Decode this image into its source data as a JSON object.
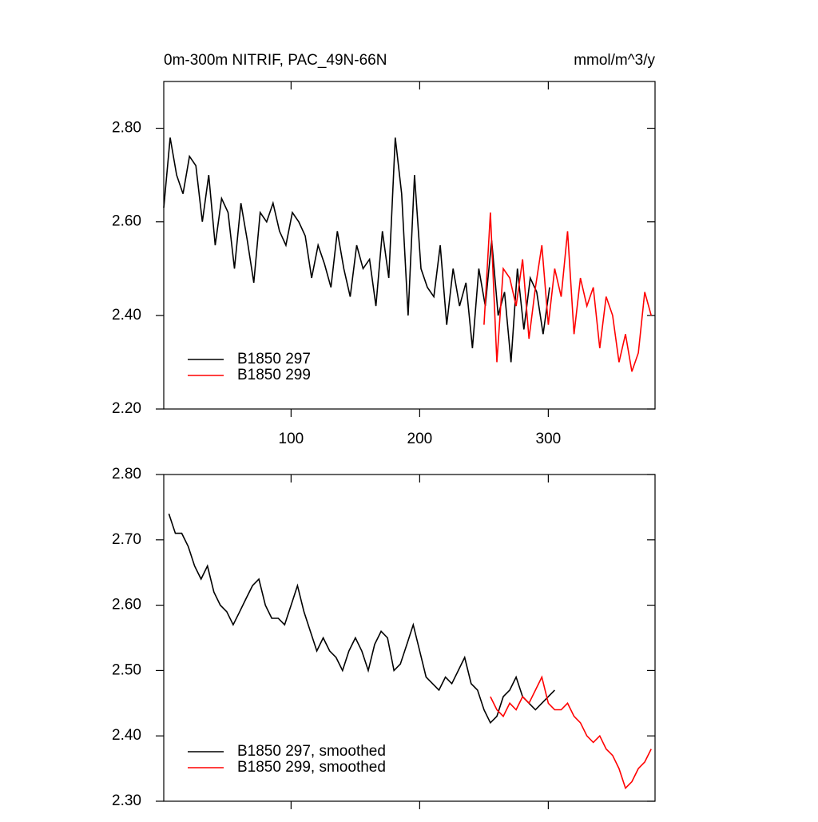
{
  "chart_data": [
    {
      "type": "line",
      "title": "0m-300m NITRIF, PAC_49N-66N",
      "units": "mmol/m^3/y",
      "xlim": [
        1,
        383
      ],
      "xticks": [
        100,
        200,
        300
      ],
      "xtick_labels": true,
      "ylim": [
        2.2,
        2.9
      ],
      "yticks": [
        {
          "value": 2.2,
          "label": "2.20"
        },
        {
          "value": 2.4,
          "label": "2.40"
        },
        {
          "value": 2.6,
          "label": "2.60"
        },
        {
          "value": 2.8,
          "label": "2.80"
        }
      ],
      "legend": "lower left",
      "series": [
        {
          "name": "B1850 297",
          "color": "#000000",
          "x": [
            1,
            6,
            11,
            16,
            21,
            26,
            31,
            36,
            41,
            46,
            51,
            56,
            61,
            66,
            71,
            76,
            81,
            86,
            91,
            96,
            101,
            106,
            111,
            116,
            121,
            126,
            131,
            136,
            141,
            146,
            151,
            156,
            161,
            166,
            171,
            176,
            181,
            186,
            191,
            196,
            201,
            206,
            211,
            216,
            221,
            226,
            231,
            236,
            241,
            246,
            251,
            256,
            261,
            266,
            271,
            276,
            281,
            286,
            291,
            296,
            301
          ],
          "values": [
            2.63,
            2.78,
            2.7,
            2.66,
            2.74,
            2.72,
            2.6,
            2.7,
            2.55,
            2.65,
            2.62,
            2.5,
            2.64,
            2.56,
            2.47,
            2.62,
            2.6,
            2.64,
            2.58,
            2.55,
            2.62,
            2.6,
            2.57,
            2.48,
            2.55,
            2.51,
            2.46,
            2.58,
            2.5,
            2.44,
            2.55,
            2.5,
            2.52,
            2.42,
            2.58,
            2.48,
            2.78,
            2.66,
            2.4,
            2.7,
            2.5,
            2.46,
            2.44,
            2.55,
            2.38,
            2.5,
            2.42,
            2.47,
            2.33,
            2.5,
            2.42,
            2.56,
            2.4,
            2.45,
            2.3,
            2.5,
            2.37,
            2.48,
            2.45,
            2.36,
            2.46
          ]
        },
        {
          "name": "B1850 299",
          "color": "#ff0000",
          "x": [
            250,
            255,
            260,
            265,
            270,
            275,
            280,
            285,
            290,
            295,
            300,
            305,
            310,
            315,
            320,
            325,
            330,
            335,
            340,
            345,
            350,
            355,
            360,
            365,
            370,
            375,
            380
          ],
          "values": [
            2.38,
            2.62,
            2.3,
            2.5,
            2.48,
            2.42,
            2.52,
            2.35,
            2.46,
            2.55,
            2.38,
            2.5,
            2.44,
            2.58,
            2.36,
            2.48,
            2.42,
            2.46,
            2.33,
            2.44,
            2.4,
            2.3,
            2.36,
            2.28,
            2.32,
            2.45,
            2.4
          ]
        }
      ]
    },
    {
      "type": "line",
      "xlim": [
        1,
        383
      ],
      "xticks": [
        100,
        200,
        300
      ],
      "xtick_labels": false,
      "ylim": [
        2.3,
        2.8
      ],
      "yticks": [
        {
          "value": 2.3,
          "label": "2.30"
        },
        {
          "value": 2.4,
          "label": "2.40"
        },
        {
          "value": 2.5,
          "label": "2.50"
        },
        {
          "value": 2.6,
          "label": "2.60"
        },
        {
          "value": 2.7,
          "label": "2.70"
        },
        {
          "value": 2.8,
          "label": "2.80"
        }
      ],
      "legend": "lower left",
      "series": [
        {
          "name": "B1850 297, smoothed",
          "color": "#000000",
          "x": [
            5,
            10,
            15,
            20,
            25,
            30,
            35,
            40,
            45,
            50,
            55,
            60,
            65,
            70,
            75,
            80,
            85,
            90,
            95,
            100,
            105,
            110,
            115,
            120,
            125,
            130,
            135,
            140,
            145,
            150,
            155,
            160,
            165,
            170,
            175,
            180,
            185,
            190,
            195,
            200,
            205,
            210,
            215,
            220,
            225,
            230,
            235,
            240,
            245,
            250,
            255,
            260,
            265,
            270,
            275,
            280,
            285,
            290,
            295,
            300,
            305
          ],
          "values": [
            2.74,
            2.71,
            2.71,
            2.69,
            2.66,
            2.64,
            2.66,
            2.62,
            2.6,
            2.59,
            2.57,
            2.59,
            2.61,
            2.63,
            2.64,
            2.6,
            2.58,
            2.58,
            2.57,
            2.6,
            2.63,
            2.59,
            2.56,
            2.53,
            2.55,
            2.53,
            2.52,
            2.5,
            2.53,
            2.55,
            2.53,
            2.5,
            2.54,
            2.56,
            2.55,
            2.5,
            2.51,
            2.54,
            2.57,
            2.53,
            2.49,
            2.48,
            2.47,
            2.49,
            2.48,
            2.5,
            2.52,
            2.48,
            2.47,
            2.44,
            2.42,
            2.43,
            2.46,
            2.47,
            2.49,
            2.46,
            2.45,
            2.44,
            2.45,
            2.46,
            2.47
          ]
        },
        {
          "name": "B1850 299, smoothed",
          "color": "#ff0000",
          "x": [
            255,
            260,
            265,
            270,
            275,
            280,
            285,
            290,
            295,
            300,
            305,
            310,
            315,
            320,
            325,
            330,
            335,
            340,
            345,
            350,
            355,
            360,
            365,
            370,
            375,
            380
          ],
          "values": [
            2.46,
            2.44,
            2.43,
            2.45,
            2.44,
            2.46,
            2.45,
            2.47,
            2.49,
            2.45,
            2.44,
            2.44,
            2.45,
            2.43,
            2.42,
            2.4,
            2.39,
            2.4,
            2.38,
            2.37,
            2.35,
            2.32,
            2.33,
            2.35,
            2.36,
            2.38
          ]
        }
      ]
    }
  ]
}
